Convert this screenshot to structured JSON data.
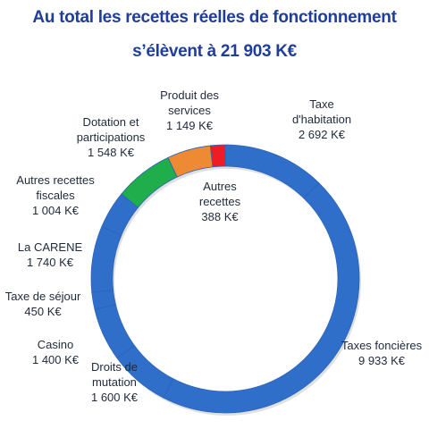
{
  "chart_data": {
    "type": "pie",
    "title_line1": "Au total les recettes réelles de fonctionnement",
    "title_line2": "s’élèvent à 21 903 K€",
    "slices": [
      {
        "name_lines": [
          "Taxe",
          "d'habitation"
        ],
        "value_text": "2 692 K€",
        "value": 2692,
        "color": "#2f6fca"
      },
      {
        "name_lines": [
          "Taxes foncières"
        ],
        "value_text": "9 933 K€",
        "value": 9933,
        "color": "#2f6fca"
      },
      {
        "name_lines": [
          "Droits de",
          "mutation"
        ],
        "value_text": "1 600 K€",
        "value": 1600,
        "color": "#2f6fca"
      },
      {
        "name_lines": [
          "Casino"
        ],
        "value_text": "1 400 K€",
        "value": 1400,
        "color": "#2f6fca"
      },
      {
        "name_lines": [
          "Taxe de séjour"
        ],
        "value_text": "450 K€",
        "value": 450,
        "color": "#2f6fca"
      },
      {
        "name_lines": [
          "La CARENE"
        ],
        "value_text": "1 740 K€",
        "value": 1740,
        "color": "#2f6fca"
      },
      {
        "name_lines": [
          "Autres recettes",
          "fiscales"
        ],
        "value_text": "1 004 K€",
        "value": 1004,
        "color": "#2f6fca"
      },
      {
        "name_lines": [
          "Dotation et",
          "participations"
        ],
        "value_text": "1 548 K€",
        "value": 1548,
        "color": "#1fae4b"
      },
      {
        "name_lines": [
          "Produit des",
          "services"
        ],
        "value_text": "1 149 K€",
        "value": 1149,
        "color": "#ef8a34"
      },
      {
        "name_lines": [
          "Autres",
          "recettes"
        ],
        "value_text": "388 K€",
        "value": 388,
        "color": "#ee1d25"
      }
    ]
  }
}
